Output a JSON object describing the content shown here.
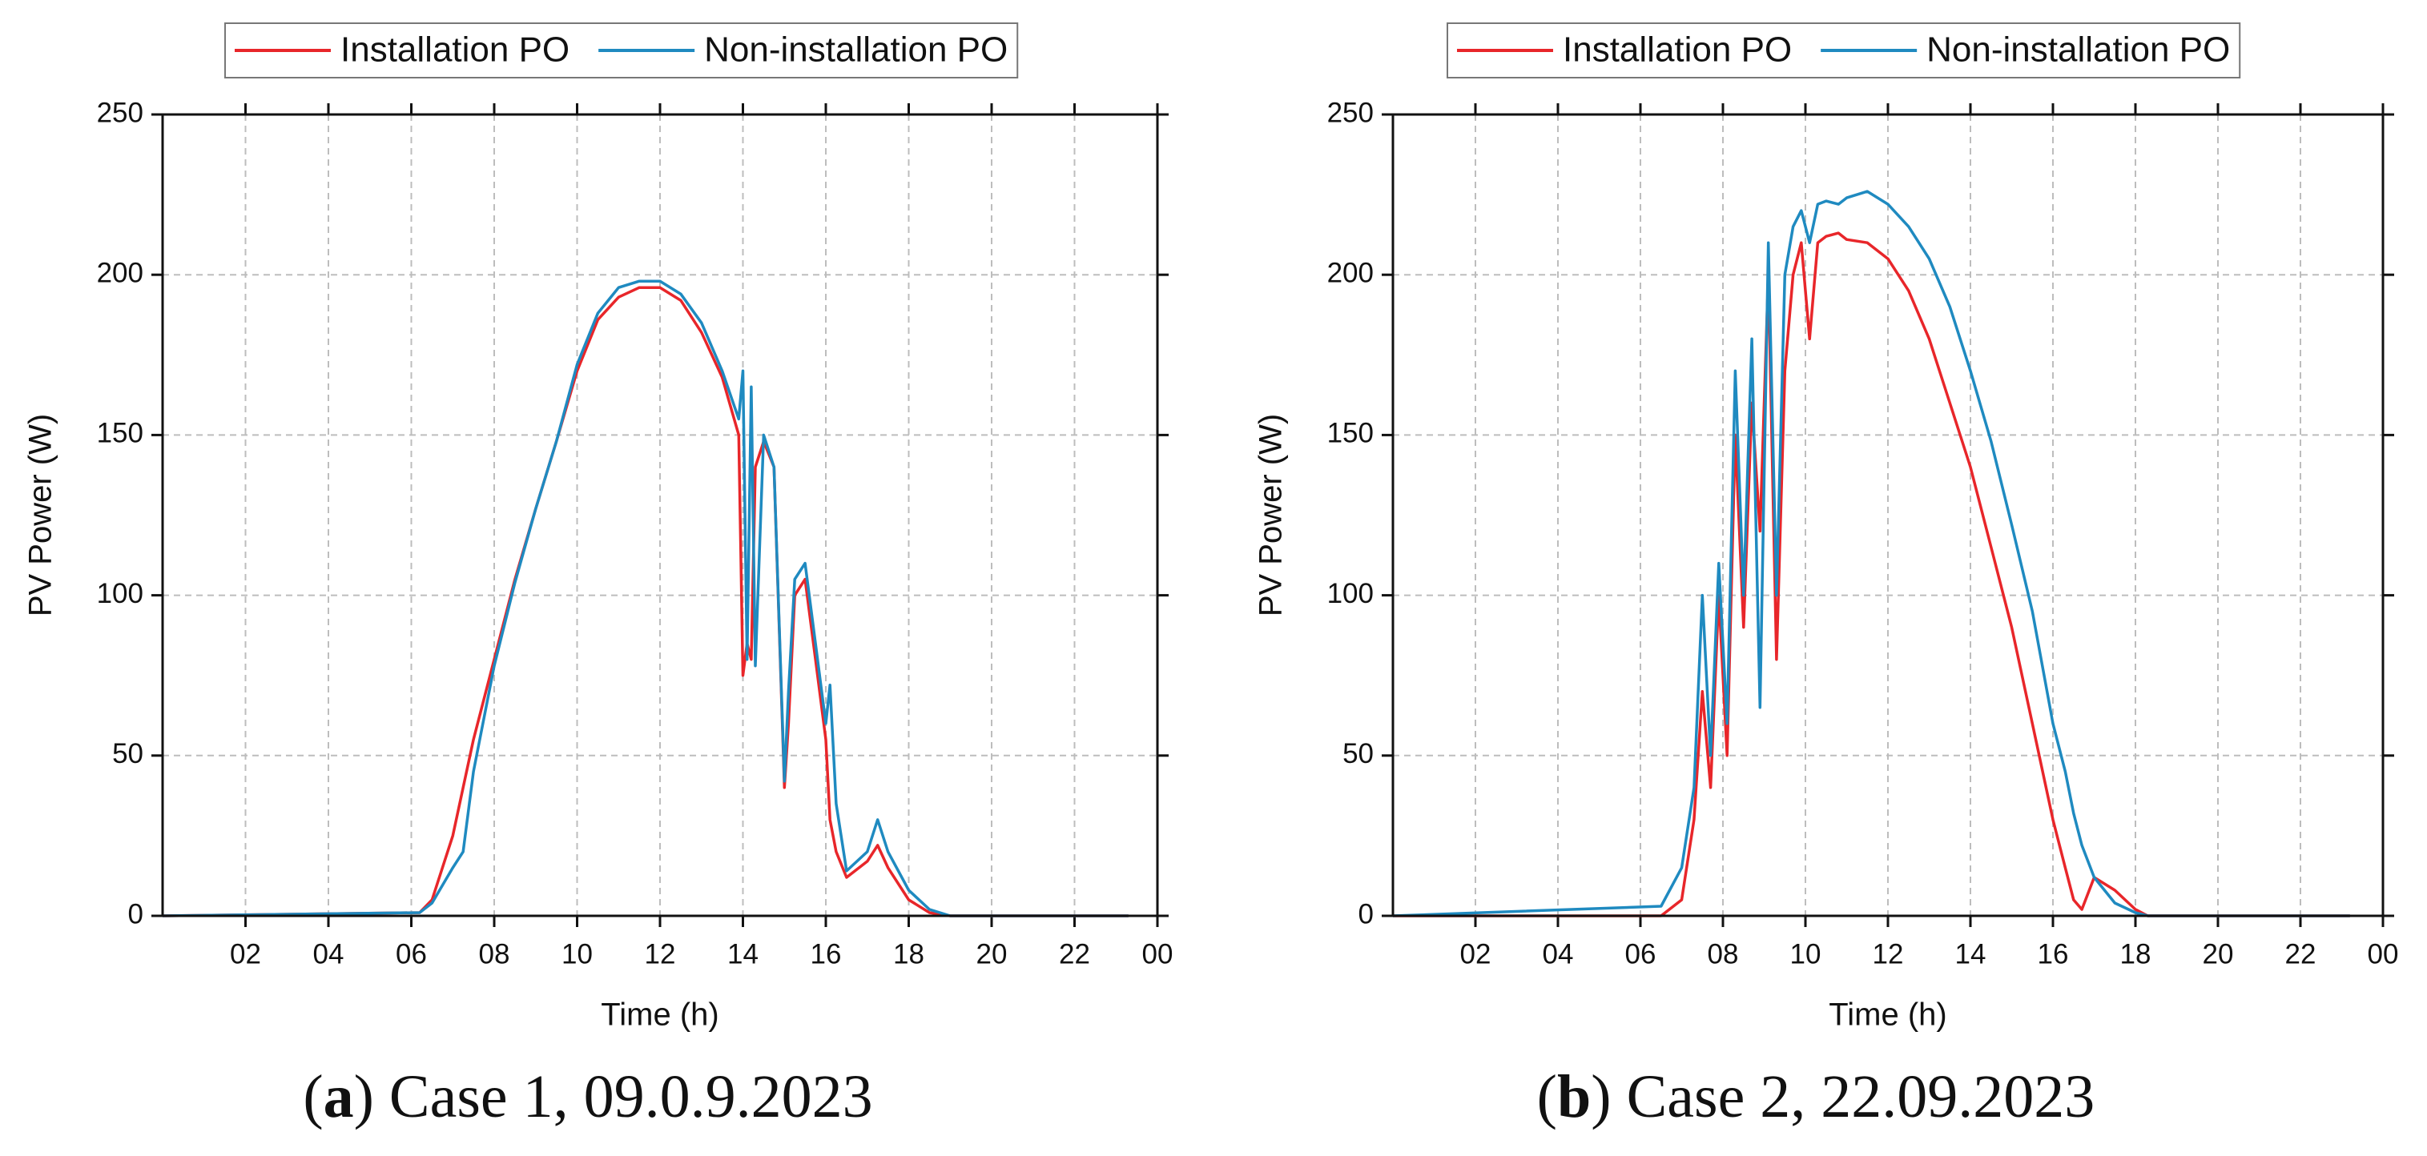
{
  "chart_data": [
    {
      "type": "line",
      "xlabel": "Time (h)",
      "ylabel": "PV Power (W)",
      "caption": {
        "prefix": "(",
        "letter": "a",
        "text": ") Case 1, 09.0.9.2023"
      },
      "x": [
        0,
        6.2,
        6.5,
        7,
        7.25,
        7.5,
        8,
        8.5,
        9,
        9.5,
        10,
        10.5,
        11,
        11.5,
        12,
        12.5,
        13,
        13.5,
        13.9,
        14.0,
        14.1,
        14.2,
        14.3,
        14.5,
        14.75,
        15,
        15.1,
        15.25,
        15.5,
        15.75,
        16,
        16.1,
        16.25,
        16.5,
        17,
        17.25,
        17.5,
        18,
        18.5,
        19,
        23.3
      ],
      "series": [
        {
          "name": "Installation PO",
          "color": "#e8262a",
          "values": [
            0,
            1,
            5,
            25,
            40,
            55,
            80,
            105,
            127,
            148,
            170,
            186,
            193,
            196,
            196,
            192,
            182,
            168,
            150,
            75,
            85,
            80,
            140,
            148,
            140,
            40,
            60,
            100,
            105,
            80,
            55,
            30,
            20,
            12,
            17,
            22,
            15,
            5,
            1,
            0,
            0
          ]
        },
        {
          "name": "Non-installation PO",
          "color": "#1f8ac0",
          "values": [
            0,
            1,
            4,
            15,
            20,
            45,
            78,
            104,
            127,
            148,
            172,
            188,
            196,
            198,
            198,
            194,
            185,
            170,
            155,
            170,
            80,
            165,
            78,
            150,
            140,
            42,
            70,
            105,
            110,
            85,
            60,
            72,
            35,
            14,
            20,
            30,
            20,
            8,
            2,
            0,
            0
          ]
        }
      ],
      "xlim": [
        0,
        24
      ],
      "ylim": [
        0,
        250
      ],
      "xticks": [
        {
          "value": 2,
          "label": "02"
        },
        {
          "value": 4,
          "label": "04"
        },
        {
          "value": 6,
          "label": "06"
        },
        {
          "value": 8,
          "label": "08"
        },
        10,
        12,
        14,
        16,
        18,
        20,
        22,
        {
          "value": 24,
          "label": "00"
        }
      ],
      "yticks": [
        0,
        50,
        100,
        150,
        200,
        250
      ],
      "grid": true
    },
    {
      "type": "line",
      "xlabel": "Time (h)",
      "ylabel": "PV Power (W)",
      "caption": {
        "prefix": "(",
        "letter": "b",
        "text": ") Case 2, 22.09.2023"
      },
      "x": [
        0,
        6.5,
        7,
        7.3,
        7.5,
        7.7,
        7.9,
        8.1,
        8.3,
        8.5,
        8.7,
        8.9,
        9.1,
        9.3,
        9.5,
        9.7,
        9.9,
        10.1,
        10.3,
        10.5,
        10.8,
        11,
        11.5,
        12,
        12.5,
        13,
        13.5,
        14,
        14.5,
        15,
        15.5,
        16,
        16.3,
        16.5,
        16.7,
        17,
        17.5,
        18,
        18.3,
        23.2
      ],
      "series": [
        {
          "name": "Installation PO",
          "color": "#e8262a",
          "values": [
            0,
            0,
            5,
            30,
            70,
            40,
            100,
            50,
            150,
            90,
            160,
            120,
            200,
            80,
            170,
            200,
            210,
            180,
            210,
            212,
            213,
            211,
            210,
            205,
            195,
            180,
            160,
            140,
            115,
            90,
            60,
            30,
            15,
            5,
            2,
            12,
            8,
            2,
            0,
            0
          ]
        },
        {
          "name": "Non-installation PO",
          "color": "#1f8ac0",
          "values": [
            0,
            3,
            15,
            40,
            100,
            50,
            110,
            60,
            170,
            100,
            180,
            65,
            210,
            100,
            200,
            215,
            220,
            210,
            222,
            223,
            222,
            224,
            226,
            222,
            215,
            205,
            190,
            170,
            148,
            122,
            95,
            60,
            45,
            32,
            22,
            12,
            4,
            1,
            0,
            0
          ]
        }
      ],
      "xlim": [
        0,
        24
      ],
      "ylim": [
        0,
        250
      ],
      "xticks": [
        {
          "value": 2,
          "label": "02"
        },
        {
          "value": 4,
          "label": "04"
        },
        {
          "value": 6,
          "label": "06"
        },
        {
          "value": 8,
          "label": "08"
        },
        10,
        12,
        14,
        16,
        18,
        20,
        22,
        {
          "value": 24,
          "label": "00"
        }
      ],
      "yticks": [
        0,
        50,
        100,
        150,
        200,
        250
      ],
      "grid": true
    }
  ]
}
